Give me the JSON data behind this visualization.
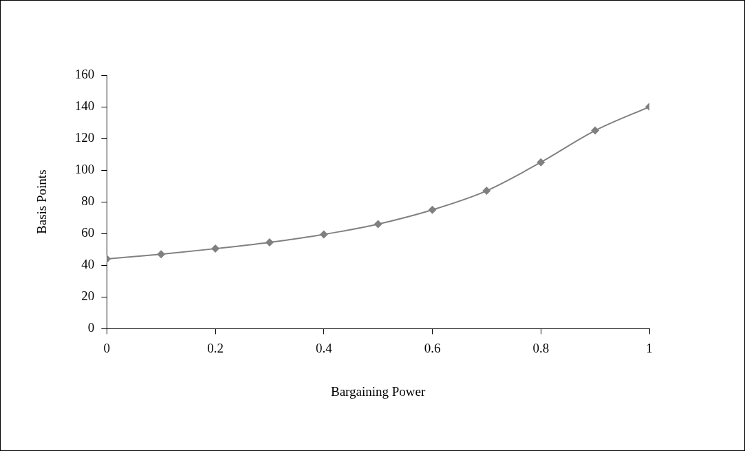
{
  "chart_data": {
    "type": "line",
    "xlabel": "Bargaining Power",
    "ylabel": "Basis Points",
    "x": [
      0,
      0.1,
      0.2,
      0.3,
      0.4,
      0.5,
      0.6,
      0.7,
      0.8,
      0.9,
      1
    ],
    "series": [
      {
        "color": "#808080",
        "values": [
          44,
          47,
          50.5,
          54.5,
          59.5,
          66,
          75,
          87,
          105,
          125,
          140
        ]
      }
    ],
    "xlim": [
      0,
      1
    ],
    "xticks": [
      0,
      0.2,
      0.4,
      0.6,
      0.8,
      1
    ],
    "ylim": [
      0,
      160
    ],
    "yticks": [
      0,
      20,
      40,
      60,
      80,
      100,
      120,
      140,
      160
    ],
    "grid": false,
    "legend": false,
    "marker": "diamond",
    "line_style": "solid"
  }
}
